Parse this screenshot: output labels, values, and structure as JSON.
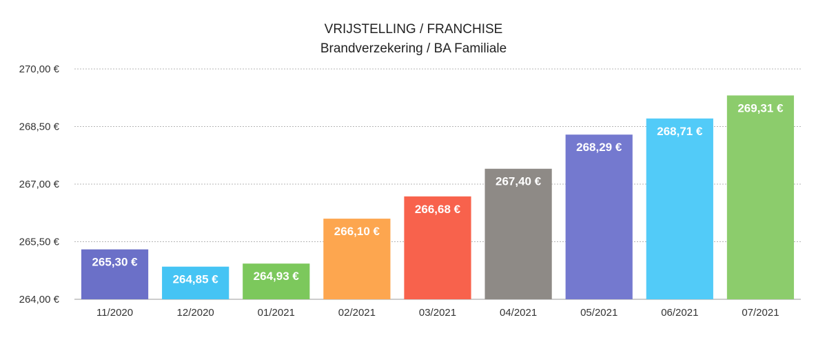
{
  "chart_data": {
    "type": "bar",
    "title": "VRIJSTELLING / FRANCHISE",
    "subtitle": "Brandverzekering / BA Familiale",
    "xlabel": "",
    "ylabel": "",
    "categories": [
      "11/2020",
      "12/2020",
      "01/2021",
      "02/2021",
      "03/2021",
      "04/2021",
      "05/2021",
      "06/2021",
      "07/2021"
    ],
    "values": [
      265.3,
      264.85,
      264.93,
      266.1,
      266.68,
      267.4,
      268.29,
      268.71,
      269.31
    ],
    "value_labels": [
      "265,30 €",
      "264,85 €",
      "264,93 €",
      "266,10 €",
      "266,68 €",
      "267,40 €",
      "268,29 €",
      "268,71 €",
      "269,31 €"
    ],
    "colors": [
      "#6b70c8",
      "#45c4f4",
      "#7cc85c",
      "#fda64f",
      "#f8624c",
      "#8e8a86",
      "#7479cf",
      "#52cbf8",
      "#8ccc6c"
    ],
    "ylim": [
      264,
      270
    ],
    "yticks": [
      264,
      265.5,
      267,
      268.5,
      270
    ],
    "ytick_labels": [
      "264,00 €",
      "265,50 €",
      "267,00 €",
      "268,50 €",
      "270,00 €"
    ],
    "grid": true,
    "legend": "none"
  }
}
